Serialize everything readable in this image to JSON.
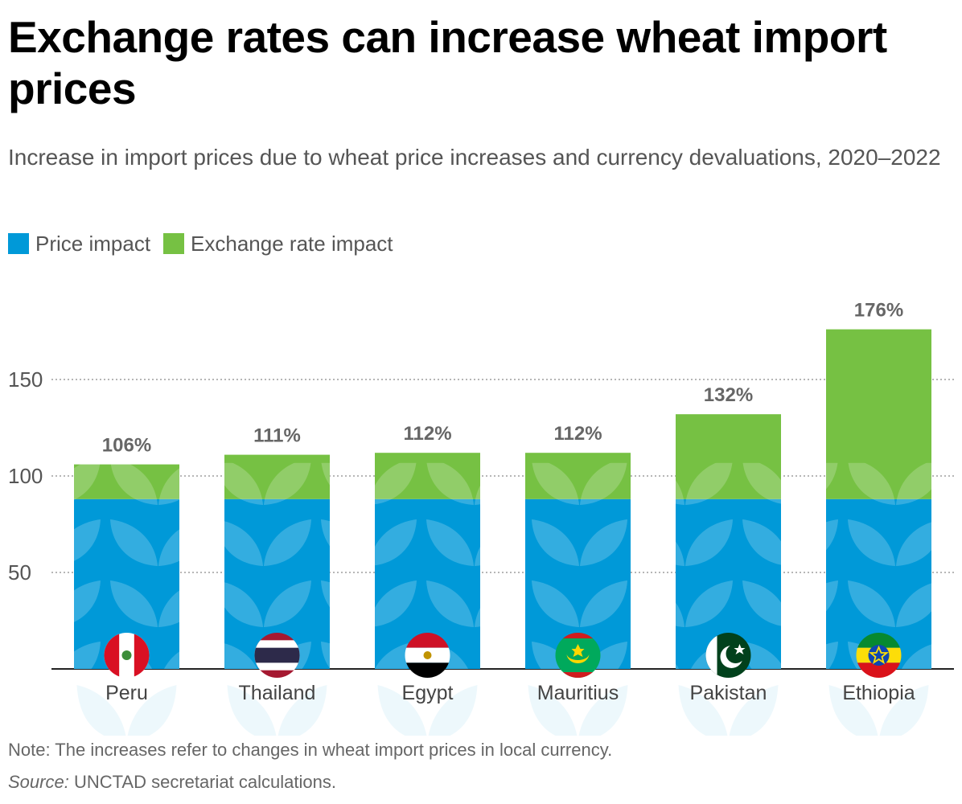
{
  "header": {
    "title": "Exchange rates can increase wheat import prices",
    "subtitle": "Increase in import prices due to wheat price increases and currency devaluations, 2020–2022"
  },
  "legend": [
    {
      "label": "Price impact",
      "color": "#0099d8"
    },
    {
      "label": "Exchange rate impact",
      "color": "#76c143"
    }
  ],
  "chart_data": {
    "type": "bar",
    "stacked": true,
    "title": "Exchange rates can increase wheat import prices",
    "subtitle": "Increase in import prices due to wheat price increases and currency devaluations, 2020–2022",
    "categories": [
      "Peru",
      "Thailand",
      "Egypt",
      "Mauritius",
      "Pakistan",
      "Ethiopia"
    ],
    "series": [
      {
        "name": "Price impact",
        "color": "#0099d8",
        "values": [
          88,
          88,
          88,
          88,
          88,
          88
        ]
      },
      {
        "name": "Exchange rate impact",
        "color": "#76c143",
        "values": [
          18,
          23,
          24,
          24,
          44,
          88
        ]
      }
    ],
    "totals": [
      106,
      111,
      112,
      112,
      132,
      176
    ],
    "total_labels": [
      "106%",
      "111%",
      "112%",
      "112%",
      "132%",
      "176%"
    ],
    "flag_icons": [
      "peru-flag-icon",
      "thailand-flag-icon",
      "egypt-flag-icon",
      "mauritius-flag-icon",
      "pakistan-flag-icon",
      "ethiopia-flag-icon"
    ],
    "yticks": [
      50,
      100,
      150
    ],
    "ylim": [
      0,
      180
    ],
    "xlabel": "",
    "ylabel": "",
    "grid": true,
    "legend_position": "top-left"
  },
  "footer": {
    "note": "Note: The increases refer to changes in wheat import prices in local currency.",
    "source_label": "Source:",
    "source_text": " UNCTAD secretariat calculations."
  }
}
